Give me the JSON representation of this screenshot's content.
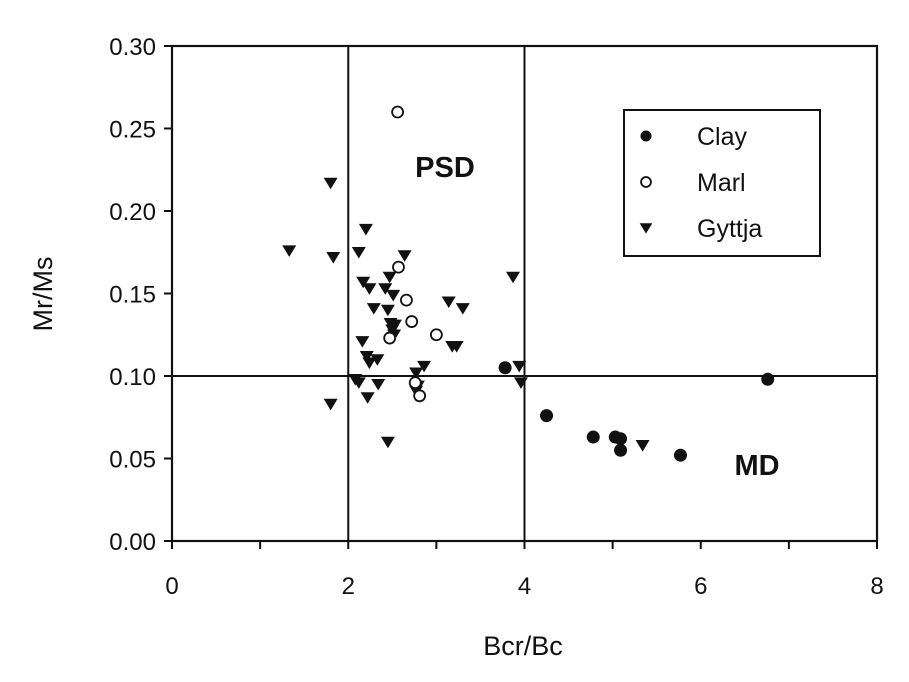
{
  "chart_data": {
    "type": "scatter",
    "title": "",
    "xlabel": "Bcr/Bc",
    "ylabel": "Mr/Ms",
    "xlim": [
      0,
      8
    ],
    "ylim": [
      0.0,
      0.3
    ],
    "xticks": [
      "0",
      "2",
      "4",
      "6",
      "8"
    ],
    "yticks": [
      "0.00",
      "0.05",
      "0.10",
      "0.15",
      "0.20",
      "0.25",
      "0.30"
    ],
    "grid": false,
    "legend_position": "upper right",
    "reference_lines": {
      "vertical_x": [
        2,
        4
      ],
      "horizontal_y": [
        0.1
      ]
    },
    "annotations": [
      {
        "text": "PSD",
        "x": 3.2,
        "y": 0.125
      },
      {
        "text": "MD",
        "x": 6.9,
        "y": 0.045
      }
    ],
    "series": [
      {
        "name": "Clay",
        "marker": "filled-circle",
        "points": [
          [
            3.78,
            0.105
          ],
          [
            4.25,
            0.076
          ],
          [
            4.78,
            0.063
          ],
          [
            5.03,
            0.063
          ],
          [
            5.09,
            0.062
          ],
          [
            5.09,
            0.055
          ],
          [
            5.77,
            0.052
          ],
          [
            6.76,
            0.098
          ]
        ]
      },
      {
        "name": "Marl",
        "marker": "open-circle",
        "points": [
          [
            2.56,
            0.26
          ],
          [
            2.57,
            0.166
          ],
          [
            2.66,
            0.146
          ],
          [
            2.72,
            0.133
          ],
          [
            3.0,
            0.125
          ],
          [
            2.47,
            0.123
          ],
          [
            2.76,
            0.096
          ],
          [
            2.81,
            0.088
          ]
        ]
      },
      {
        "name": "Gyttja",
        "marker": "filled-down-triangle",
        "points": [
          [
            1.33,
            0.176
          ],
          [
            1.8,
            0.217
          ],
          [
            1.83,
            0.172
          ],
          [
            2.12,
            0.175
          ],
          [
            2.2,
            0.189
          ],
          [
            2.17,
            0.157
          ],
          [
            2.24,
            0.153
          ],
          [
            2.42,
            0.153
          ],
          [
            2.47,
            0.16
          ],
          [
            2.51,
            0.149
          ],
          [
            2.29,
            0.141
          ],
          [
            2.45,
            0.14
          ],
          [
            2.48,
            0.132
          ],
          [
            2.53,
            0.131
          ],
          [
            2.5,
            0.128
          ],
          [
            2.52,
            0.125
          ],
          [
            2.64,
            0.173
          ],
          [
            2.16,
            0.121
          ],
          [
            2.21,
            0.112
          ],
          [
            2.24,
            0.108
          ],
          [
            2.33,
            0.11
          ],
          [
            2.77,
            0.102
          ],
          [
            2.86,
            0.106
          ],
          [
            2.08,
            0.098
          ],
          [
            2.12,
            0.096
          ],
          [
            2.34,
            0.095
          ],
          [
            2.22,
            0.087
          ],
          [
            2.77,
            0.091
          ],
          [
            2.79,
            0.094
          ],
          [
            1.8,
            0.083
          ],
          [
            2.45,
            0.06
          ],
          [
            3.18,
            0.118
          ],
          [
            3.14,
            0.145
          ],
          [
            3.3,
            0.141
          ],
          [
            3.23,
            0.118
          ],
          [
            3.87,
            0.16
          ],
          [
            3.94,
            0.106
          ],
          [
            3.96,
            0.096
          ],
          [
            5.34,
            0.058
          ]
        ]
      }
    ]
  },
  "legend": {
    "items": [
      {
        "label": "Clay",
        "marker": "filled-circle"
      },
      {
        "label": "Marl",
        "marker": "open-circle"
      },
      {
        "label": "Gyttja",
        "marker": "filled-down-triangle"
      }
    ]
  },
  "labels": {
    "psd": "PSD",
    "md": "MD",
    "xlabel": "Bcr/Bc",
    "ylabel": "Mr/Ms"
  }
}
